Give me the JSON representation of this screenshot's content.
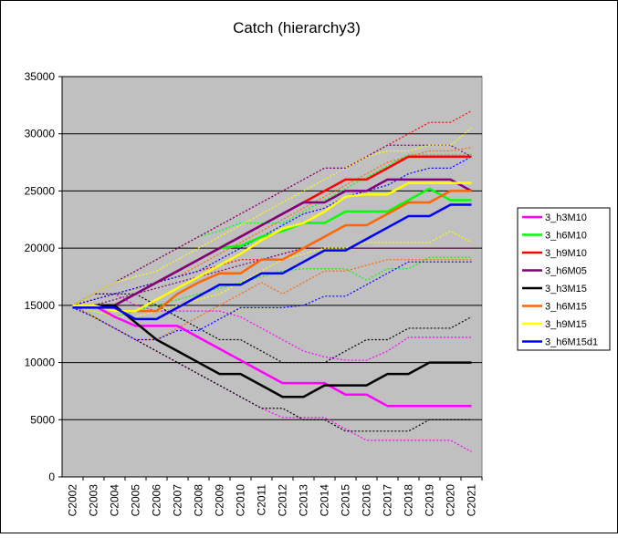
{
  "chart_data": {
    "type": "line",
    "title": "Catch (hierarchy3)",
    "categories": [
      "C2002",
      "C2003",
      "C2004",
      "C2005",
      "C2006",
      "C2007",
      "C2008",
      "C2009",
      "C2010",
      "C2011",
      "C2012",
      "C2013",
      "C2014",
      "C2015",
      "C2016",
      "C2017",
      "C2018",
      "C2019",
      "C2020",
      "C2021"
    ],
    "ylim": [
      0,
      35000
    ],
    "yticks": [
      0,
      5000,
      10000,
      15000,
      20000,
      25000,
      30000,
      35000
    ],
    "grid": true,
    "legend": "right",
    "series": [
      {
        "name": "3_h3M10",
        "color": "#ff00ff",
        "values": [
          15000,
          15000,
          14000,
          13200,
          13200,
          13200,
          12200,
          11200,
          10200,
          9200,
          8200,
          8200,
          8200,
          7200,
          7200,
          6200,
          6200,
          6200,
          6200,
          6200
        ],
        "upper": [
          15000,
          16000,
          16000,
          15000,
          14500,
          14500,
          14500,
          14500,
          14000,
          13000,
          12000,
          11000,
          10500,
          10200,
          10200,
          11000,
          12200,
          12200,
          12200,
          12200
        ],
        "lower": [
          15000,
          14000,
          13000,
          12000,
          11000,
          10000,
          9000,
          8000,
          7000,
          6000,
          5200,
          5200,
          5200,
          4200,
          3200,
          3200,
          3200,
          3200,
          3200,
          2200
        ]
      },
      {
        "name": "3_h6M10",
        "color": "#00ff00",
        "values": [
          15000,
          15000,
          15000,
          16000,
          17000,
          18000,
          19000,
          20000,
          20200,
          21000,
          21500,
          22200,
          22200,
          23200,
          23200,
          23200,
          24200,
          25200,
          24200,
          24200
        ],
        "upper": [
          15000,
          16000,
          17000,
          18000,
          19000,
          20000,
          21000,
          21500,
          22200,
          22200,
          22200,
          23200,
          24200,
          25200,
          26200,
          27200,
          28200,
          28200,
          28200,
          28200
        ],
        "lower": [
          15000,
          14500,
          14000,
          14500,
          15000,
          15500,
          16000,
          16500,
          17000,
          17500,
          18000,
          18200,
          18200,
          18200,
          17200,
          18200,
          18200,
          19200,
          19200,
          19200
        ]
      },
      {
        "name": "3_h9M10",
        "color": "#ff0000",
        "values": [
          15000,
          15000,
          15000,
          16000,
          17000,
          18000,
          19000,
          20000,
          21000,
          22000,
          23000,
          24000,
          25000,
          26000,
          26000,
          27000,
          28000,
          28000,
          28000,
          28000
        ],
        "upper": [
          15000,
          16000,
          17000,
          18000,
          19000,
          20000,
          21000,
          22000,
          23000,
          24000,
          25000,
          26000,
          27000,
          27000,
          28000,
          29000,
          30000,
          31000,
          31000,
          32000
        ],
        "lower": [
          15000,
          15500,
          16000,
          16500,
          17000,
          17500,
          18000,
          18500,
          19000,
          19000,
          19500,
          20000,
          20000,
          20000,
          20000,
          20000,
          20000,
          20000,
          20000,
          20000
        ]
      },
      {
        "name": "3_h6M05",
        "color": "#800080",
        "values": [
          15000,
          15000,
          15000,
          16000,
          17000,
          18000,
          19000,
          20000,
          21000,
          22000,
          23000,
          24000,
          24000,
          25000,
          25000,
          26000,
          26000,
          26000,
          26000,
          25000
        ],
        "upper": [
          15000,
          16000,
          17000,
          18000,
          19000,
          20000,
          21000,
          22000,
          23000,
          24000,
          25000,
          26000,
          27000,
          27000,
          28000,
          29000,
          29000,
          29000,
          29000,
          28000
        ],
        "lower": [
          15000,
          15000,
          15500,
          16000,
          16500,
          17000,
          17500,
          18000,
          18500,
          19000,
          19500,
          20000,
          20000,
          20000,
          20000,
          20000,
          20000,
          20000,
          20000,
          20000
        ]
      },
      {
        "name": "3_h3M15",
        "color": "#000000",
        "values": [
          15000,
          15000,
          15000,
          13500,
          12000,
          11000,
          10000,
          9000,
          9000,
          8000,
          7000,
          7000,
          8000,
          8000,
          8000,
          9000,
          9000,
          10000,
          10000,
          10000
        ],
        "upper": [
          15000,
          16000,
          16000,
          16000,
          15000,
          14000,
          13000,
          12000,
          12000,
          11000,
          10000,
          10000,
          10000,
          11000,
          12000,
          12000,
          13000,
          13000,
          13000,
          14000
        ],
        "lower": [
          15000,
          14000,
          13000,
          12000,
          11000,
          10000,
          9000,
          8000,
          7000,
          6000,
          6000,
          5000,
          5000,
          4000,
          4000,
          4000,
          4000,
          5000,
          5000,
          5000
        ]
      },
      {
        "name": "3_h6M15",
        "color": "#ff6600",
        "values": [
          15000,
          15000,
          14500,
          14500,
          14500,
          16000,
          17000,
          17800,
          17800,
          19000,
          19000,
          20000,
          21000,
          22000,
          22000,
          23000,
          24000,
          24000,
          25000,
          25000
        ],
        "upper": [
          15000,
          15500,
          16000,
          16500,
          17000,
          17500,
          18500,
          19500,
          20500,
          21500,
          22500,
          23500,
          24500,
          25500,
          26500,
          27500,
          28000,
          28500,
          28500,
          28800
        ],
        "lower": [
          15000,
          14000,
          13000,
          12000,
          12000,
          13000,
          14000,
          15000,
          16000,
          17000,
          16000,
          17000,
          18000,
          18000,
          18500,
          19000,
          19000,
          19000,
          19000,
          19000
        ]
      },
      {
        "name": "3_h9M15",
        "color": "#ffff00",
        "values": [
          15000,
          15000,
          14500,
          14500,
          15500,
          16500,
          17500,
          18500,
          19500,
          20700,
          21700,
          22200,
          23200,
          24500,
          24700,
          24700,
          25700,
          25700,
          25700,
          25700
        ],
        "upper": [
          15000,
          16000,
          17000,
          17500,
          18000,
          19000,
          20000,
          21000,
          22000,
          23000,
          24000,
          25000,
          26000,
          27000,
          28000,
          28500,
          28500,
          29000,
          29000,
          30500
        ],
        "lower": [
          15000,
          14500,
          14000,
          14000,
          14500,
          15000,
          15500,
          16000,
          17000,
          18000,
          19000,
          19500,
          20000,
          20000,
          20500,
          20500,
          20500,
          20500,
          21500,
          20500
        ]
      },
      {
        "name": "3_h6M15d1",
        "color": "#0000ff",
        "values": [
          14800,
          14800,
          14800,
          13800,
          13800,
          14800,
          15800,
          16800,
          16800,
          17800,
          17800,
          18800,
          19800,
          19800,
          20800,
          21800,
          22800,
          22800,
          23800,
          23800
        ],
        "upper": [
          15000,
          15500,
          16000,
          16500,
          17000,
          17500,
          18000,
          19000,
          20000,
          21000,
          22000,
          23000,
          23500,
          24500,
          25000,
          25500,
          26500,
          27000,
          27000,
          28000
        ],
        "lower": [
          14800,
          14000,
          13000,
          12000,
          12000,
          12800,
          12800,
          13800,
          14800,
          14800,
          14800,
          15000,
          15800,
          15800,
          16800,
          17800,
          18800,
          18800,
          18800,
          18800
        ]
      }
    ]
  }
}
